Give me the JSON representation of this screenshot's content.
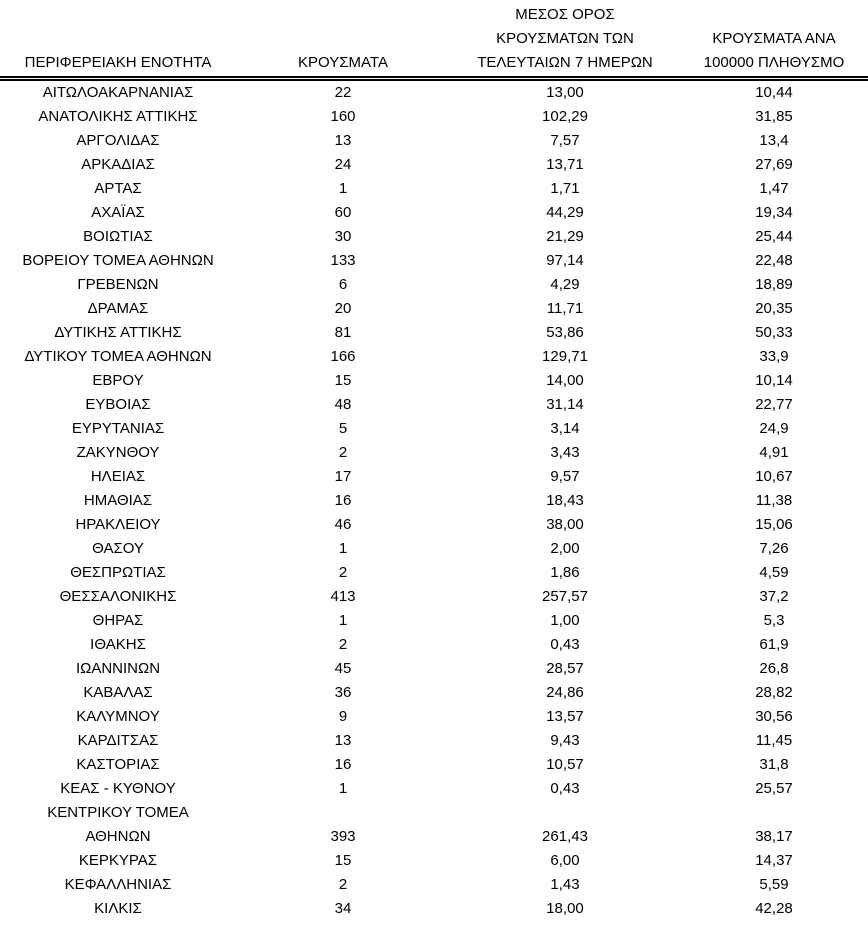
{
  "accent_color": "#000000",
  "background_color": "#ffffff",
  "chart_data": {
    "type": "table",
    "columns": [
      "ΠΕΡΙΦΕΡΕΙΑΚΗ ΕΝΟΤΗΤΑ",
      "ΚΡΟΥΣΜΑΤΑ",
      "ΜΕΣΟΣ ΟΡΟΣ\nΚΡΟΥΣΜΑΤΩΝ ΤΩΝ\nΤΕΛΕΥΤΑΙΩΝ 7 ΗΜΕΡΩΝ",
      "ΚΡΟΥΣΜΑΤΑ ΑΝΑ\n100000 ΠΛΗΘΥΣΜΟ"
    ],
    "rows": [
      [
        "ΑΙΤΩΛΟΑΚΑΡΝΑΝΙΑΣ",
        "22",
        "13,00",
        "10,44"
      ],
      [
        "ΑΝΑΤΟΛΙΚΗΣ ΑΤΤΙΚΗΣ",
        "160",
        "102,29",
        "31,85"
      ],
      [
        "ΑΡΓΟΛΙΔΑΣ",
        "13",
        "7,57",
        "13,4"
      ],
      [
        "ΑΡΚΑΔΙΑΣ",
        "24",
        "13,71",
        "27,69"
      ],
      [
        "ΑΡΤΑΣ",
        "1",
        "1,71",
        "1,47"
      ],
      [
        "ΑΧΑΪΑΣ",
        "60",
        "44,29",
        "19,34"
      ],
      [
        "ΒΟΙΩΤΙΑΣ",
        "30",
        "21,29",
        "25,44"
      ],
      [
        "ΒΟΡΕΙΟΥ ΤΟΜΕΑ ΑΘΗΝΩΝ",
        "133",
        "97,14",
        "22,48"
      ],
      [
        "ΓΡΕΒΕΝΩΝ",
        "6",
        "4,29",
        "18,89"
      ],
      [
        "ΔΡΑΜΑΣ",
        "20",
        "11,71",
        "20,35"
      ],
      [
        "ΔΥΤΙΚΗΣ ΑΤΤΙΚΗΣ",
        "81",
        "53,86",
        "50,33"
      ],
      [
        "ΔΥΤΙΚΟΥ ΤΟΜΕΑ ΑΘΗΝΩΝ",
        "166",
        "129,71",
        "33,9"
      ],
      [
        "ΕΒΡΟΥ",
        "15",
        "14,00",
        "10,14"
      ],
      [
        "ΕΥΒΟΙΑΣ",
        "48",
        "31,14",
        "22,77"
      ],
      [
        "ΕΥΡΥΤΑΝΙΑΣ",
        "5",
        "3,14",
        "24,9"
      ],
      [
        "ΖΑΚΥΝΘΟΥ",
        "2",
        "3,43",
        "4,91"
      ],
      [
        "ΗΛΕΙΑΣ",
        "17",
        "9,57",
        "10,67"
      ],
      [
        "ΗΜΑΘΙΑΣ",
        "16",
        "18,43",
        "11,38"
      ],
      [
        "ΗΡΑΚΛΕΙΟΥ",
        "46",
        "38,00",
        "15,06"
      ],
      [
        "ΘΑΣΟΥ",
        "1",
        "2,00",
        "7,26"
      ],
      [
        "ΘΕΣΠΡΩΤΙΑΣ",
        "2",
        "1,86",
        "4,59"
      ],
      [
        "ΘΕΣΣΑΛΟΝΙΚΗΣ",
        "413",
        "257,57",
        "37,2"
      ],
      [
        "ΘΗΡΑΣ",
        "1",
        "1,00",
        "5,3"
      ],
      [
        "ΙΘΑΚΗΣ",
        "2",
        "0,43",
        "61,9"
      ],
      [
        "ΙΩΑΝΝΙΝΩΝ",
        "45",
        "28,57",
        "26,8"
      ],
      [
        "ΚΑΒΑΛΑΣ",
        "36",
        "24,86",
        "28,82"
      ],
      [
        "ΚΑΛΥΜΝΟΥ",
        "9",
        "13,57",
        "30,56"
      ],
      [
        "ΚΑΡΔΙΤΣΑΣ",
        "13",
        "9,43",
        "11,45"
      ],
      [
        "ΚΑΣΤΟΡΙΑΣ",
        "16",
        "10,57",
        "31,8"
      ],
      [
        "ΚΕΑΣ - ΚΥΘΝΟΥ",
        "1",
        "0,43",
        "25,57"
      ],
      [
        "ΚΕΝΤΡΙΚΟΥ ΤΟΜΕΑ\nΑΘΗΝΩΝ",
        "393",
        "261,43",
        "38,17"
      ],
      [
        "ΚΕΡΚΥΡΑΣ",
        "15",
        "6,00",
        "14,37"
      ],
      [
        "ΚΕΦΑΛΛΗΝΙΑΣ",
        "2",
        "1,43",
        "5,59"
      ],
      [
        "ΚΙΛΚΙΣ",
        "34",
        "18,00",
        "42,28"
      ]
    ]
  }
}
